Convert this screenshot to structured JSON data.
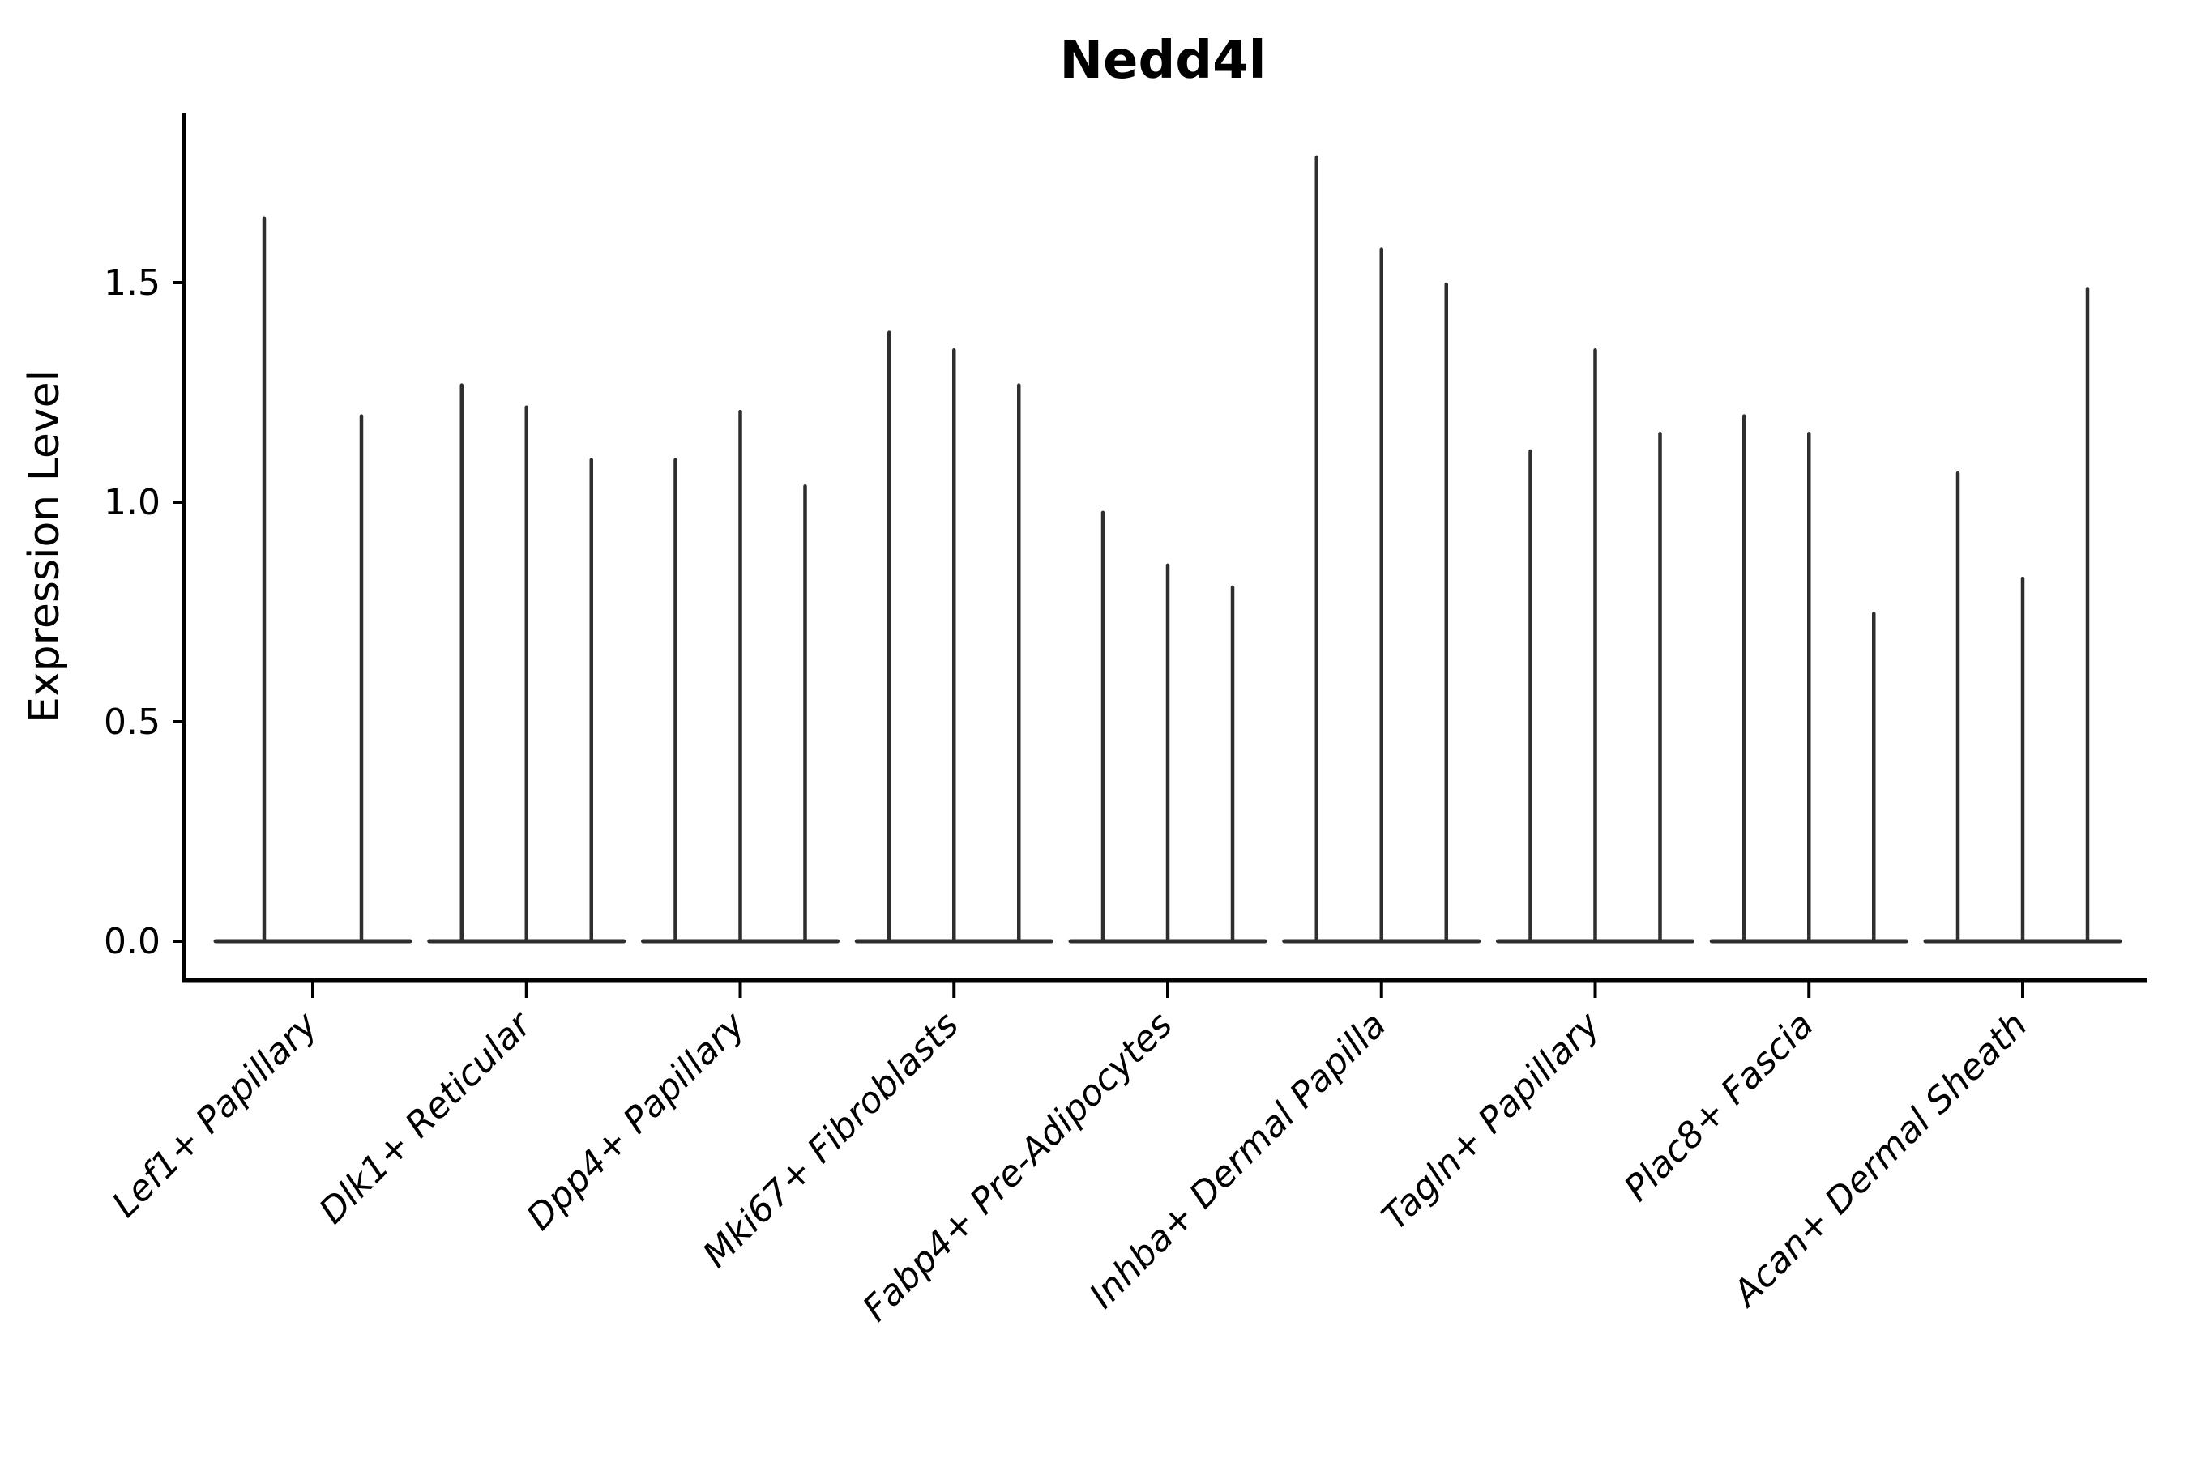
{
  "figure": {
    "title": "Nedd4l",
    "background": "#ffffff"
  },
  "chart_data": {
    "type": "violin",
    "title": "Nedd4l",
    "xlabel": "",
    "ylabel": "Expression Level",
    "ytick_labels": [
      "0.0",
      "0.5",
      "1.0",
      "1.5"
    ],
    "ytick_values": [
      0.0,
      0.5,
      1.0,
      1.5
    ],
    "ylim": [
      -0.09,
      1.89
    ],
    "grid": false,
    "legend": null,
    "violin_shape_note": "needle violins: wide flat base at 0, thin spike up to max expression",
    "style": {
      "violin_color": "#2e2e2e",
      "axis_color": "#000000",
      "background": "#ffffff"
    },
    "categories": [
      "Lef1+ Papillary",
      "Dlk1+ Reticular",
      "Dpp4+ Papillary",
      "Mki67+ Fibroblasts",
      "Fabp4+ Pre-Adipocytes",
      "Inhba+ Dermal Papilla",
      "Tagln+ Papillary",
      "Plac8+ Fascia",
      "Acan+ Dermal Sheath"
    ],
    "groups": [
      {
        "category": "Lef1+ Papillary",
        "violin_max_values": [
          1.65,
          1.2
        ]
      },
      {
        "category": "Dlk1+ Reticular",
        "violin_max_values": [
          1.27,
          1.22,
          1.1
        ]
      },
      {
        "category": "Dpp4+ Papillary",
        "violin_max_values": [
          1.1,
          1.21,
          1.04
        ]
      },
      {
        "category": "Mki67+ Fibroblasts",
        "violin_max_values": [
          1.39,
          1.35,
          1.27
        ]
      },
      {
        "category": "Fabp4+ Pre-Adipocytes",
        "violin_max_values": [
          0.98,
          0.86,
          0.81
        ]
      },
      {
        "category": "Inhba+ Dermal Papilla",
        "violin_max_values": [
          1.79,
          1.58,
          1.5
        ]
      },
      {
        "category": "Tagln+ Papillary",
        "violin_max_values": [
          1.12,
          1.35,
          1.16
        ]
      },
      {
        "category": "Plac8+ Fascia",
        "violin_max_values": [
          1.2,
          1.16,
          0.75
        ]
      },
      {
        "category": "Acan+ Dermal Sheath",
        "violin_max_values": [
          1.07,
          0.83,
          1.49
        ]
      }
    ]
  }
}
